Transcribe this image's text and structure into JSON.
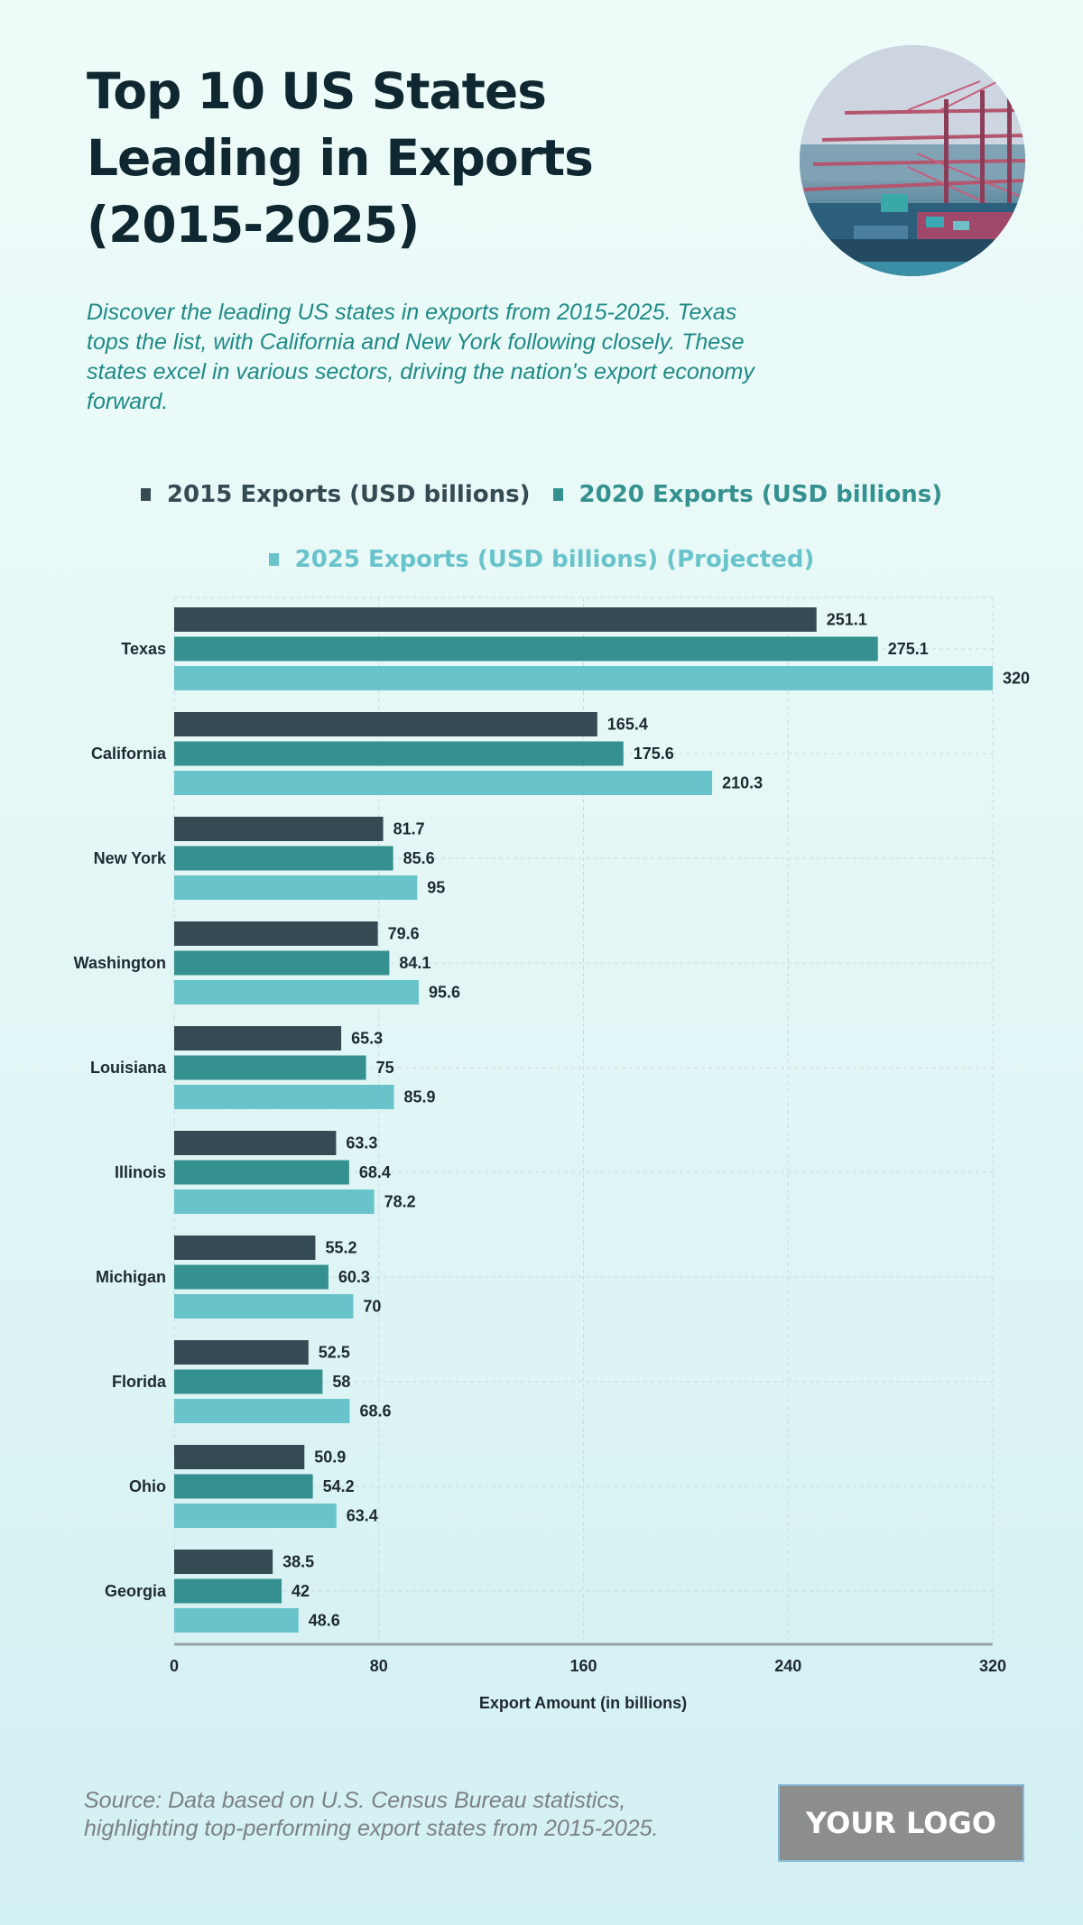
{
  "header": {
    "title": "Top 10 US States Leading in Exports (2015-2025)",
    "subtitle": "Discover the leading US states in exports from 2015-2025. Texas tops the list, with California and New York following closely. These states excel in various sectors, driving the nation's export economy forward.",
    "photo_description": "container port with cranes"
  },
  "footer": {
    "source": "Source: Data based on U.S. Census Bureau statistics, highlighting top-performing export states from 2015-2025.",
    "logo_text": "YOUR LOGO"
  },
  "colors": {
    "series_2015": "#344b53",
    "series_2020": "#35918f",
    "series_2025": "#69c3cb",
    "title": "#0e2730",
    "subtitle": "#1f8a86"
  },
  "chart_data": {
    "type": "bar",
    "orientation": "horizontal",
    "title": "",
    "xlabel": "Export Amount (in billions)",
    "ylabel": "",
    "xlim": [
      0,
      320
    ],
    "xticks": [
      0,
      80,
      160,
      240,
      320
    ],
    "grid": true,
    "legend_position": "top",
    "categories": [
      "Texas",
      "California",
      "New York",
      "Washington",
      "Louisiana",
      "Illinois",
      "Michigan",
      "Florida",
      "Ohio",
      "Georgia"
    ],
    "series": [
      {
        "name": "2015 Exports (USD billions)",
        "color": "#344b53",
        "values": [
          251.1,
          165.4,
          81.7,
          79.6,
          65.3,
          63.3,
          55.2,
          52.5,
          50.9,
          38.5
        ]
      },
      {
        "name": "2020 Exports (USD billions)",
        "color": "#35918f",
        "values": [
          275.1,
          175.6,
          85.6,
          84.1,
          75,
          68.4,
          60.3,
          58,
          54.2,
          42
        ]
      },
      {
        "name": "2025 Exports (USD billions) (Projected)",
        "color": "#69c3cb",
        "values": [
          320,
          210.3,
          95,
          95.6,
          85.9,
          78.2,
          70,
          68.6,
          63.4,
          48.6
        ]
      }
    ]
  }
}
